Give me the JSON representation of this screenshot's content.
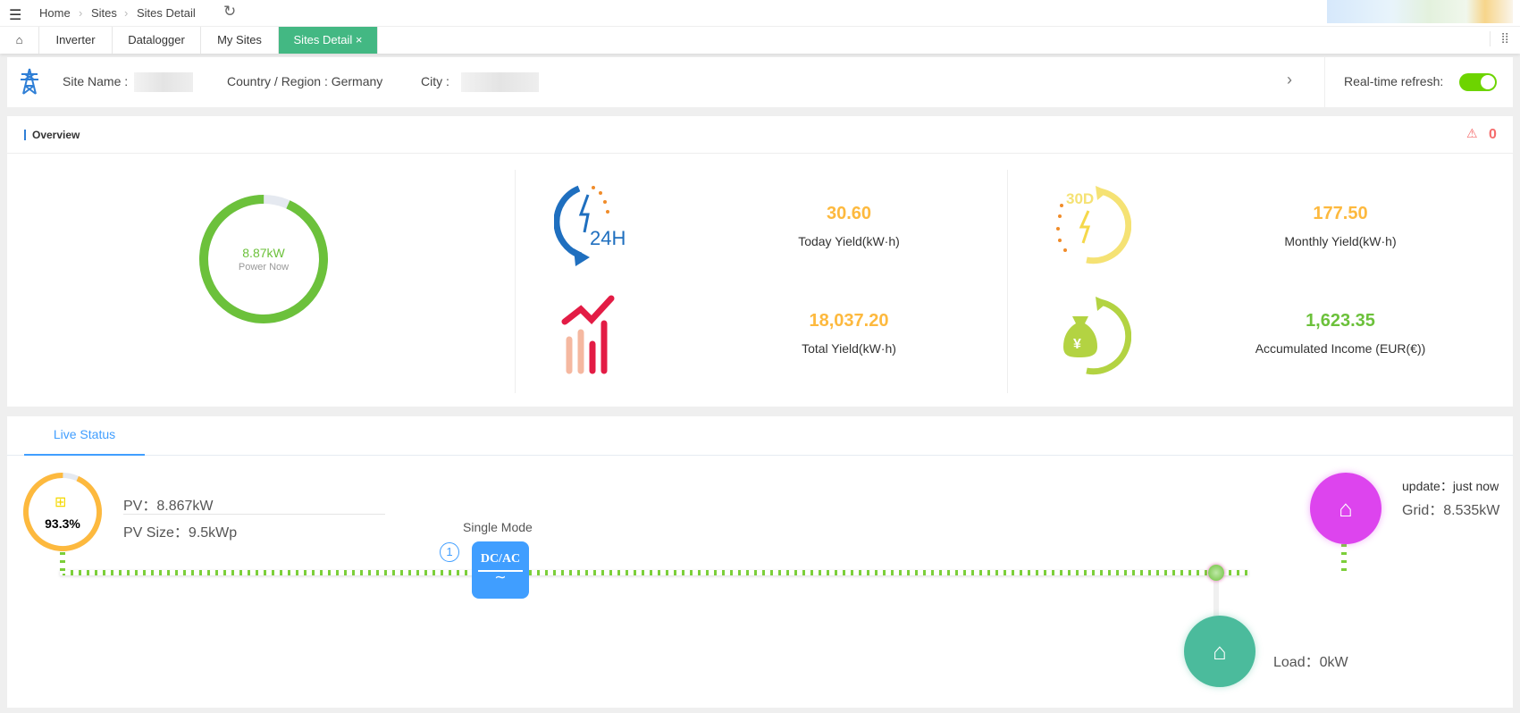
{
  "topbar": {
    "breadcrumb": [
      "Home",
      "Sites",
      "Sites Detail"
    ],
    "menu_icon": "menu-icon",
    "refresh_icon": "refresh-icon"
  },
  "tabs": [
    {
      "label": "Inverter"
    },
    {
      "label": "Datalogger"
    },
    {
      "label": "My Sites"
    },
    {
      "label": "Sites Detail",
      "active": true
    }
  ],
  "site": {
    "name_label": "Site Name :",
    "country_label": "Country / Region : Germany",
    "city_label": "City :",
    "refresh_label": "Real-time refresh:",
    "refresh_on": true
  },
  "overview": {
    "title": "Overview",
    "alarm_count": "0",
    "power_now": {
      "value": "8.87kW",
      "label": "Power Now",
      "fraction": 0.933
    },
    "today": {
      "value": "30.60",
      "label": "Today Yield(kW·h)"
    },
    "monthly": {
      "value": "177.50",
      "label": "Monthly Yield(kW·h)"
    },
    "total": {
      "value": "18,037.20",
      "label": "Total Yield(kW·h)"
    },
    "income": {
      "value": "1,623.35",
      "label": "Accumulated Income (EUR(€))"
    }
  },
  "live": {
    "tab": "Live Status",
    "pv_percent": "93.3%",
    "pv_fraction": 0.933,
    "pv": "PV：8.867kW",
    "pv_size": "PV Size：9.5kWp",
    "mode": "Single Mode",
    "inverter_count": "1",
    "inverter_label": "DC/AC",
    "update": "update：just now",
    "grid": "Grid：8.535kW",
    "load": "Load：0kW"
  },
  "colors": {
    "accent": "#43b883",
    "green": "#6cc13b",
    "orange": "#fdb93e",
    "grid": "#dd44ee",
    "load": "#4bbb9c",
    "blue": "#409eff"
  }
}
